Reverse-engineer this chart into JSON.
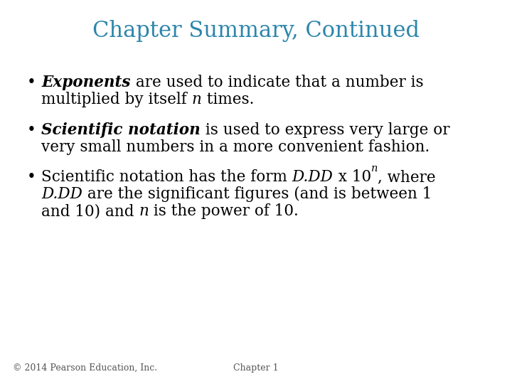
{
  "title": "Chapter Summary, Continued",
  "title_color": "#2E86AB",
  "title_fontsize": 22,
  "background_color": "#FFFFFF",
  "bullet_color": "#000000",
  "bullet_fontsize": 15.5,
  "footer_fontsize": 9,
  "footer_left": "© 2014 Pearson Education, Inc.",
  "footer_center": "Chapter 1",
  "figwidth": 7.2,
  "figheight": 5.4,
  "dpi": 100
}
